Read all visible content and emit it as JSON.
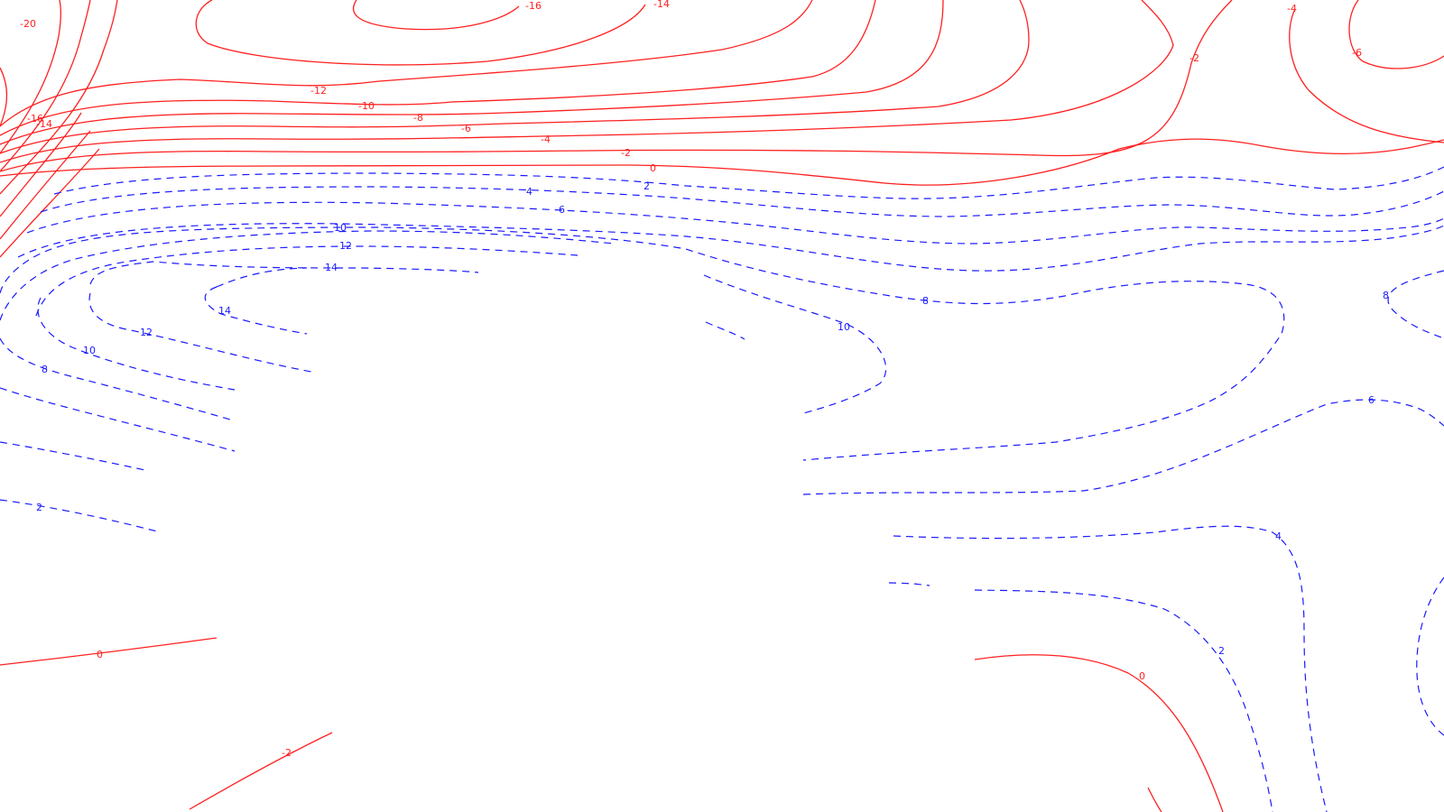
{
  "map": {
    "colors": {
      "negative": "#ff2020",
      "positive": "#1a1aff",
      "background": "#ffffff"
    },
    "negative_line_style": "solid",
    "positive_line_style": "dashed",
    "labels": {
      "m20": "-20",
      "m16a": "-16",
      "m16b": "-16",
      "m14a": "-14",
      "m14b": "-14",
      "m12": "-12",
      "m10": "-10",
      "m8": "-8",
      "m6a": "-6",
      "m6b": "-6",
      "m4a": "-4",
      "m4b": "-4",
      "m2a": "-2",
      "m2b": "-2",
      "m2c": "-2",
      "z0a": "0",
      "z0b": "0",
      "z0c": "0",
      "p2a": "2",
      "p2b": "2",
      "p4a": "4",
      "p4b": "4",
      "p6a": "6",
      "p6b": "6",
      "p8a": "8",
      "p8b": "8",
      "p8c": "8",
      "p10a": "10",
      "p10b": "10",
      "p10c": "10",
      "p12a": "12",
      "p12b": "12",
      "p14a": "14",
      "p14b": "14",
      "p2c": "2"
    }
  }
}
